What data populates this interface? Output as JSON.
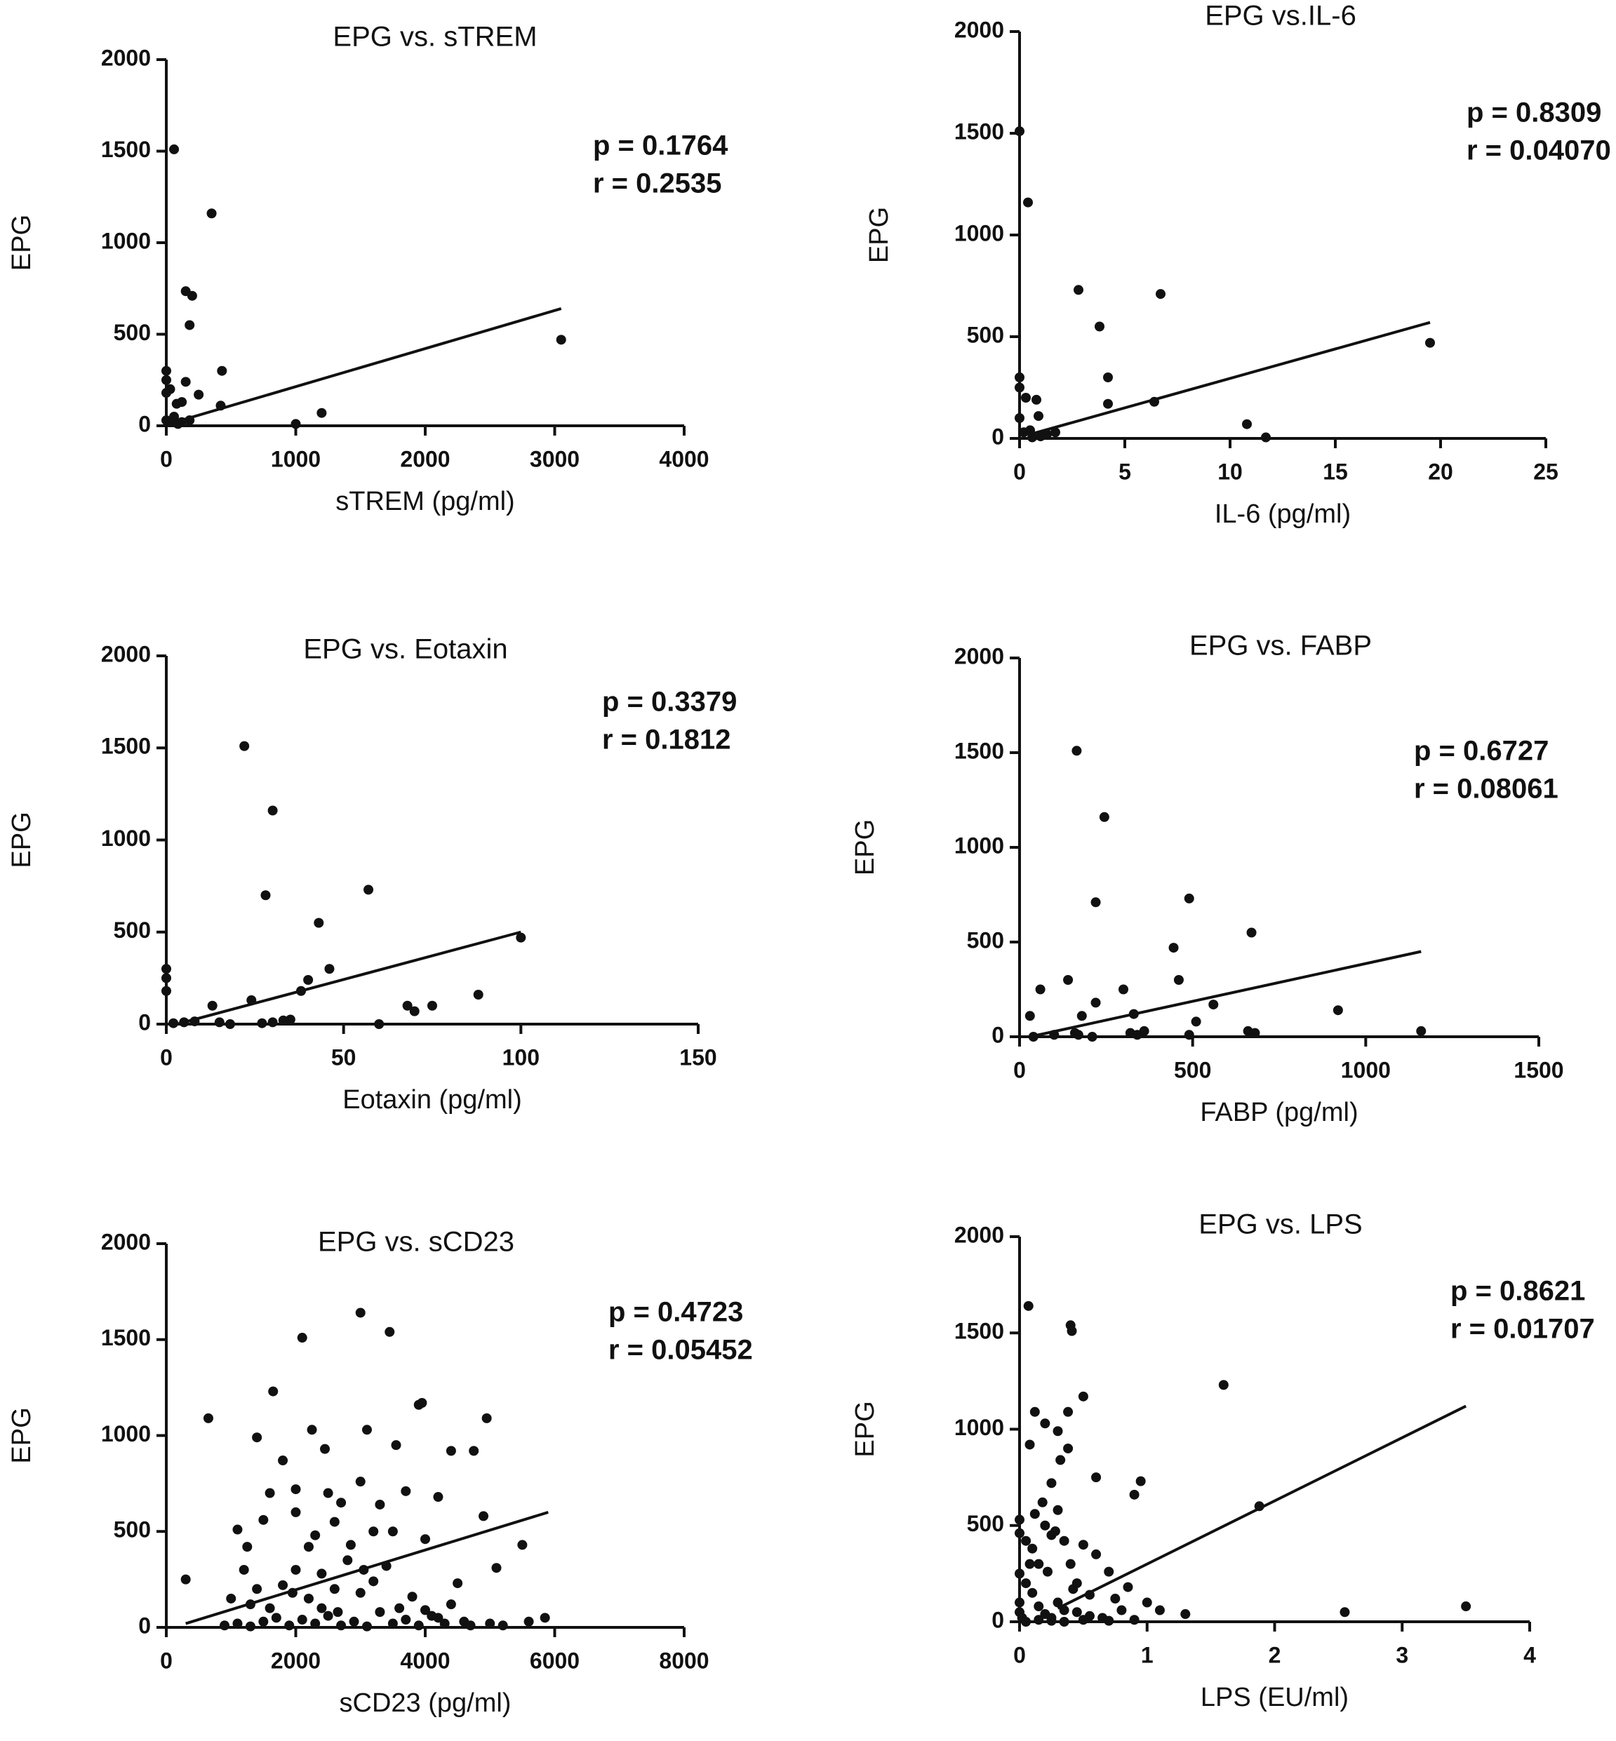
{
  "chart_data": [
    {
      "type": "scatter",
      "title": "EPG vs. sTREM",
      "xlabel": "sTREM (pg/ml)",
      "ylabel": "EPG",
      "xlim": [
        0,
        4000
      ],
      "ylim": [
        0,
        2000
      ],
      "xticks": [
        0,
        1000,
        2000,
        3000,
        4000
      ],
      "yticks": [
        0,
        500,
        1000,
        1500,
        2000
      ],
      "p_label": "p = 0.1764",
      "r_label": "r = 0.2535",
      "fit": {
        "x1": 20,
        "y1": 10,
        "x2": 3050,
        "y2": 640
      },
      "points": [
        [
          60,
          1510
        ],
        [
          350,
          1160
        ],
        [
          150,
          735
        ],
        [
          200,
          710
        ],
        [
          180,
          550
        ],
        [
          430,
          300
        ],
        [
          0,
          300
        ],
        [
          0,
          250
        ],
        [
          0,
          180
        ],
        [
          30,
          200
        ],
        [
          150,
          240
        ],
        [
          250,
          170
        ],
        [
          120,
          130
        ],
        [
          80,
          120
        ],
        [
          420,
          110
        ],
        [
          60,
          50
        ],
        [
          120,
          20
        ],
        [
          180,
          30
        ],
        [
          30,
          20
        ],
        [
          90,
          10
        ],
        [
          0,
          30
        ],
        [
          1000,
          10
        ],
        [
          1200,
          70
        ],
        [
          3050,
          470
        ]
      ]
    },
    {
      "type": "scatter",
      "title": "EPG vs.IL-6",
      "xlabel": "IL-6 (pg/ml)",
      "ylabel": "EPG",
      "xlim": [
        0,
        25
      ],
      "ylim": [
        0,
        2000
      ],
      "xticks": [
        0,
        5,
        10,
        15,
        20,
        25
      ],
      "yticks": [
        0,
        500,
        1000,
        1500,
        2000
      ],
      "p_label": "p = 0.8309",
      "r_label": "r = 0.04070",
      "fit": {
        "x1": 0.5,
        "y1": 20,
        "x2": 19.5,
        "y2": 570
      },
      "points": [
        [
          0,
          1510
        ],
        [
          0.4,
          1160
        ],
        [
          2.8,
          730
        ],
        [
          6.7,
          710
        ],
        [
          3.8,
          550
        ],
        [
          4.2,
          300
        ],
        [
          4.2,
          170
        ],
        [
          6.4,
          180
        ],
        [
          0,
          300
        ],
        [
          0,
          250
        ],
        [
          0.3,
          200
        ],
        [
          0.8,
          190
        ],
        [
          0.9,
          110
        ],
        [
          0,
          100
        ],
        [
          0.5,
          40
        ],
        [
          1,
          10
        ],
        [
          1.3,
          20
        ],
        [
          1.7,
          30
        ],
        [
          0.2,
          30
        ],
        [
          0.6,
          5
        ],
        [
          10.8,
          70
        ],
        [
          11.7,
          5
        ],
        [
          19.5,
          470
        ]
      ]
    },
    {
      "type": "scatter",
      "title": "EPG vs. Eotaxin",
      "xlabel": "Eotaxin (pg/ml)",
      "ylabel": "EPG",
      "xlim": [
        0,
        150
      ],
      "ylim": [
        0,
        2000
      ],
      "xticks": [
        0,
        50,
        100,
        150
      ],
      "yticks": [
        0,
        500,
        1000,
        1500,
        2000
      ],
      "p_label": "p = 0.3379",
      "r_label": "r = 0.1812",
      "fit": {
        "x1": 3,
        "y1": 0,
        "x2": 100,
        "y2": 500
      },
      "points": [
        [
          22,
          1510
        ],
        [
          30,
          1160
        ],
        [
          57,
          730
        ],
        [
          28,
          700
        ],
        [
          43,
          550
        ],
        [
          46,
          300
        ],
        [
          40,
          240
        ],
        [
          38,
          180
        ],
        [
          0,
          300
        ],
        [
          0,
          250
        ],
        [
          0,
          180
        ],
        [
          13,
          100
        ],
        [
          24,
          130
        ],
        [
          88,
          160
        ],
        [
          68,
          100
        ],
        [
          70,
          70
        ],
        [
          75,
          100
        ],
        [
          100,
          470
        ],
        [
          60,
          0
        ],
        [
          2,
          5
        ],
        [
          5,
          10
        ],
        [
          8,
          15
        ],
        [
          15,
          10
        ],
        [
          18,
          0
        ],
        [
          27,
          5
        ],
        [
          30,
          10
        ],
        [
          33,
          20
        ],
        [
          35,
          25
        ]
      ]
    },
    {
      "type": "scatter",
      "title": "EPG vs. FABP",
      "xlabel": "FABP (pg/ml)",
      "ylabel": "EPG",
      "xlim": [
        0,
        1500
      ],
      "ylim": [
        0,
        2000
      ],
      "xticks": [
        0,
        500,
        1000,
        1500
      ],
      "yticks": [
        0,
        500,
        1000,
        1500,
        2000
      ],
      "p_label": "p = 0.6727",
      "r_label": "r = 0.08061",
      "fit": {
        "x1": 30,
        "y1": 0,
        "x2": 1160,
        "y2": 450
      },
      "points": [
        [
          165,
          1510
        ],
        [
          245,
          1160
        ],
        [
          490,
          730
        ],
        [
          220,
          710
        ],
        [
          670,
          550
        ],
        [
          445,
          470
        ],
        [
          460,
          300
        ],
        [
          140,
          300
        ],
        [
          300,
          250
        ],
        [
          60,
          250
        ],
        [
          220,
          180
        ],
        [
          560,
          170
        ],
        [
          330,
          120
        ],
        [
          920,
          140
        ],
        [
          30,
          110
        ],
        [
          180,
          110
        ],
        [
          510,
          80
        ],
        [
          660,
          30
        ],
        [
          680,
          20
        ],
        [
          1160,
          30
        ],
        [
          40,
          0
        ],
        [
          100,
          10
        ],
        [
          160,
          20
        ],
        [
          170,
          10
        ],
        [
          210,
          0
        ],
        [
          320,
          20
        ],
        [
          340,
          10
        ],
        [
          360,
          30
        ],
        [
          490,
          10
        ]
      ]
    },
    {
      "type": "scatter",
      "title": "EPG vs. sCD23",
      "xlabel": "sCD23 (pg/ml)",
      "ylabel": "EPG",
      "xlim": [
        0,
        8000
      ],
      "ylim": [
        0,
        2000
      ],
      "xticks": [
        0,
        2000,
        4000,
        6000,
        8000
      ],
      "yticks": [
        0,
        500,
        1000,
        1500,
        2000
      ],
      "p_label": "p = 0.4723",
      "r_label": "r = 0.05452",
      "fit": {
        "x1": 300,
        "y1": 20,
        "x2": 5900,
        "y2": 600
      },
      "points": [
        [
          3000,
          1640
        ],
        [
          3450,
          1540
        ],
        [
          2100,
          1510
        ],
        [
          1650,
          1230
        ],
        [
          650,
          1090
        ],
        [
          3900,
          1160
        ],
        [
          3950,
          1170
        ],
        [
          4950,
          1090
        ],
        [
          1400,
          990
        ],
        [
          2250,
          1030
        ],
        [
          3100,
          1030
        ],
        [
          2450,
          930
        ],
        [
          3550,
          950
        ],
        [
          4400,
          920
        ],
        [
          4750,
          920
        ],
        [
          300,
          250
        ],
        [
          1100,
          510
        ],
        [
          1250,
          420
        ],
        [
          1800,
          870
        ],
        [
          1600,
          700
        ],
        [
          2000,
          600
        ],
        [
          2500,
          700
        ],
        [
          2700,
          650
        ],
        [
          3000,
          760
        ],
        [
          3300,
          640
        ],
        [
          3700,
          710
        ],
        [
          4200,
          680
        ],
        [
          1500,
          560
        ],
        [
          2300,
          480
        ],
        [
          2600,
          550
        ],
        [
          3200,
          500
        ],
        [
          3500,
          500
        ],
        [
          4000,
          460
        ],
        [
          4900,
          580
        ],
        [
          5100,
          310
        ],
        [
          5500,
          430
        ],
        [
          4500,
          230
        ],
        [
          1000,
          150
        ],
        [
          1200,
          300
        ],
        [
          1400,
          200
        ],
        [
          1600,
          100
        ],
        [
          1800,
          220
        ],
        [
          2000,
          300
        ],
        [
          2200,
          150
        ],
        [
          2400,
          100
        ],
        [
          2600,
          200
        ],
        [
          2800,
          350
        ],
        [
          3000,
          180
        ],
        [
          3200,
          240
        ],
        [
          3400,
          320
        ],
        [
          3600,
          100
        ],
        [
          3800,
          160
        ],
        [
          4000,
          90
        ],
        [
          4200,
          50
        ],
        [
          4400,
          120
        ],
        [
          4600,
          30
        ],
        [
          5000,
          20
        ],
        [
          5200,
          10
        ],
        [
          5600,
          30
        ],
        [
          5850,
          50
        ],
        [
          900,
          10
        ],
        [
          1100,
          20
        ],
        [
          1300,
          5
        ],
        [
          1500,
          30
        ],
        [
          1700,
          50
        ],
        [
          1900,
          10
        ],
        [
          2100,
          40
        ],
        [
          2300,
          20
        ],
        [
          2500,
          60
        ],
        [
          2700,
          10
        ],
        [
          2900,
          30
        ],
        [
          3100,
          5
        ],
        [
          3300,
          80
        ],
        [
          3500,
          20
        ],
        [
          3700,
          40
        ],
        [
          3900,
          10
        ],
        [
          4100,
          60
        ],
        [
          4300,
          20
        ],
        [
          4700,
          10
        ],
        [
          2200,
          420
        ],
        [
          2400,
          280
        ],
        [
          2850,
          430
        ],
        [
          3050,
          300
        ],
        [
          1950,
          180
        ],
        [
          2650,
          80
        ],
        [
          1300,
          120
        ],
        [
          2000,
          720
        ]
      ]
    },
    {
      "type": "scatter",
      "title": "EPG vs. LPS",
      "xlabel": "LPS (EU/ml)",
      "ylabel": "EPG",
      "xlim": [
        0,
        4
      ],
      "ylim": [
        0,
        2000
      ],
      "xticks": [
        0,
        1,
        2,
        3,
        4
      ],
      "yticks": [
        0,
        500,
        1000,
        1500,
        2000
      ],
      "p_label": "p = 0.8621",
      "r_label": "r = 0.01707",
      "fit": {
        "x1": 0.3,
        "y1": 70,
        "x2": 3.5,
        "y2": 1120
      },
      "points": [
        [
          0.07,
          1640
        ],
        [
          0.4,
          1540
        ],
        [
          0.41,
          1510
        ],
        [
          1.6,
          1230
        ],
        [
          0.5,
          1170
        ],
        [
          0.12,
          1090
        ],
        [
          0.2,
          1030
        ],
        [
          0.38,
          1090
        ],
        [
          0.3,
          990
        ],
        [
          0.08,
          920
        ],
        [
          0.38,
          900
        ],
        [
          0.95,
          730
        ],
        [
          0.9,
          660
        ],
        [
          0.25,
          720
        ],
        [
          0.6,
          750
        ],
        [
          1.88,
          600
        ],
        [
          0.0,
          530
        ],
        [
          0.0,
          460
        ],
        [
          0.05,
          420
        ],
        [
          0.1,
          380
        ],
        [
          0.15,
          300
        ],
        [
          0.2,
          500
        ],
        [
          0.25,
          450
        ],
        [
          0.3,
          580
        ],
        [
          0.35,
          420
        ],
        [
          0.4,
          300
        ],
        [
          0.45,
          200
        ],
        [
          0.5,
          400
        ],
        [
          0.6,
          350
        ],
        [
          0.7,
          260
        ],
        [
          0.75,
          120
        ],
        [
          0.8,
          60
        ],
        [
          0.85,
          180
        ],
        [
          1.0,
          100
        ],
        [
          1.1,
          60
        ],
        [
          1.3,
          40
        ],
        [
          2.55,
          50
        ],
        [
          3.5,
          80
        ],
        [
          0.0,
          100
        ],
        [
          0.0,
          50
        ],
        [
          0.02,
          20
        ],
        [
          0.05,
          200
        ],
        [
          0.1,
          150
        ],
        [
          0.15,
          80
        ],
        [
          0.2,
          40
        ],
        [
          0.25,
          20
        ],
        [
          0.3,
          100
        ],
        [
          0.35,
          60
        ],
        [
          0.45,
          50
        ],
        [
          0.55,
          30
        ],
        [
          0.65,
          20
        ],
        [
          0.05,
          0
        ],
        [
          0.15,
          10
        ],
        [
          0.25,
          5
        ],
        [
          0.35,
          0
        ],
        [
          0.5,
          10
        ],
        [
          0.7,
          5
        ],
        [
          0.9,
          10
        ],
        [
          0.0,
          250
        ],
        [
          0.08,
          300
        ],
        [
          0.18,
          620
        ],
        [
          0.28,
          470
        ],
        [
          0.32,
          840
        ],
        [
          0.22,
          260
        ],
        [
          0.12,
          560
        ],
        [
          0.42,
          170
        ],
        [
          0.55,
          140
        ]
      ]
    }
  ]
}
